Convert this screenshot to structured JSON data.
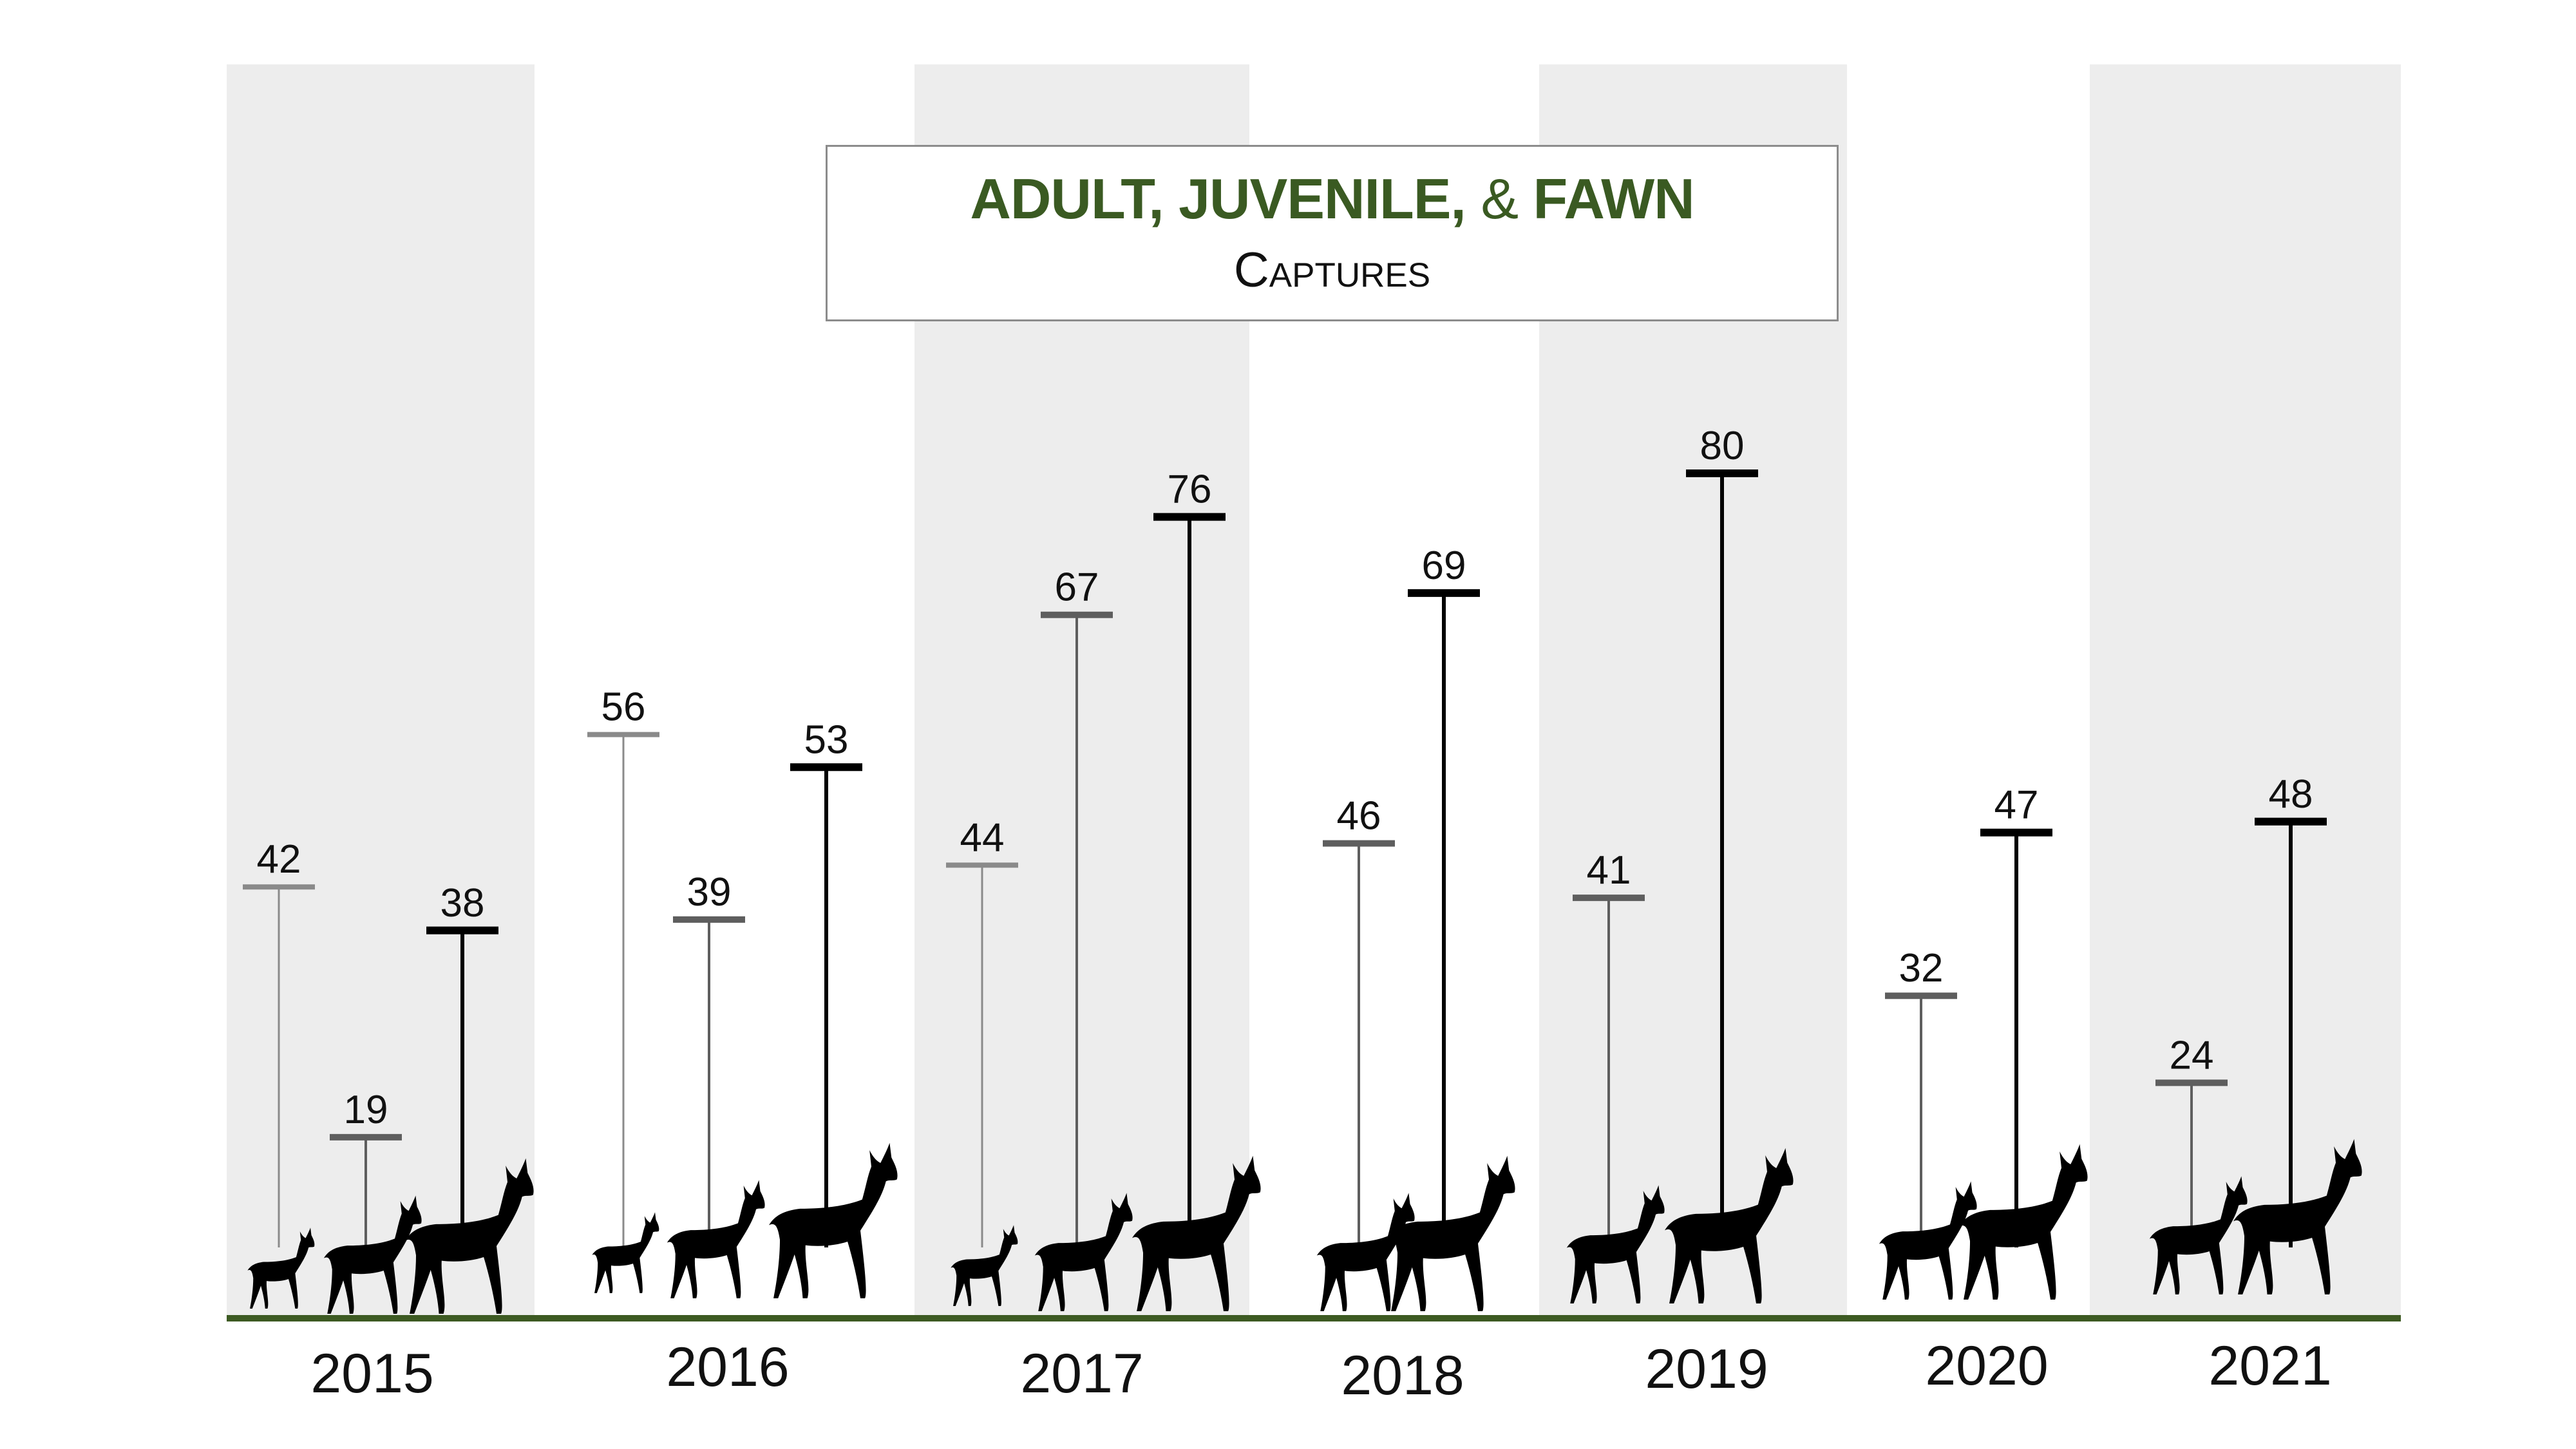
{
  "title": {
    "main_prefix": "ADULT, JUVENILE,",
    "main_amp": "&",
    "main_suffix": "FAWN",
    "subtitle": "Captures"
  },
  "colors": {
    "title_green": "#3a5a22",
    "baseline_green": "#3d5a22",
    "band_gray": "#ededed",
    "fawn_line": "#8a8a8a",
    "juvenile_line": "#5e5e5e",
    "adult_line": "#000000",
    "silhouette": "#000000"
  },
  "chart_data": {
    "type": "bar",
    "title": "ADULT, JUVENILE, & FAWN",
    "subtitle": "Captures",
    "categories": [
      "2015",
      "2016",
      "2017",
      "2018",
      "2019",
      "2020",
      "2021"
    ],
    "series": [
      {
        "key": "fawn",
        "values": [
          42,
          56,
          44,
          null,
          null,
          null,
          null
        ]
      },
      {
        "key": "juvenile",
        "values": [
          19,
          39,
          67,
          46,
          41,
          32,
          24
        ]
      },
      {
        "key": "adult",
        "values": [
          38,
          53,
          76,
          69,
          80,
          47,
          48
        ]
      }
    ],
    "bars_per_year": [
      [
        "42",
        "19",
        "38"
      ],
      [
        "56",
        "39",
        "53"
      ],
      [
        "44",
        "67",
        "76"
      ],
      [
        "46",
        "69"
      ],
      [
        "41",
        "80"
      ],
      [
        "32",
        "47"
      ],
      [
        "24",
        "48"
      ]
    ],
    "ylim": [
      0,
      90
    ],
    "grid": false,
    "legend": "none",
    "icon": "deer-silhouette-icon"
  }
}
